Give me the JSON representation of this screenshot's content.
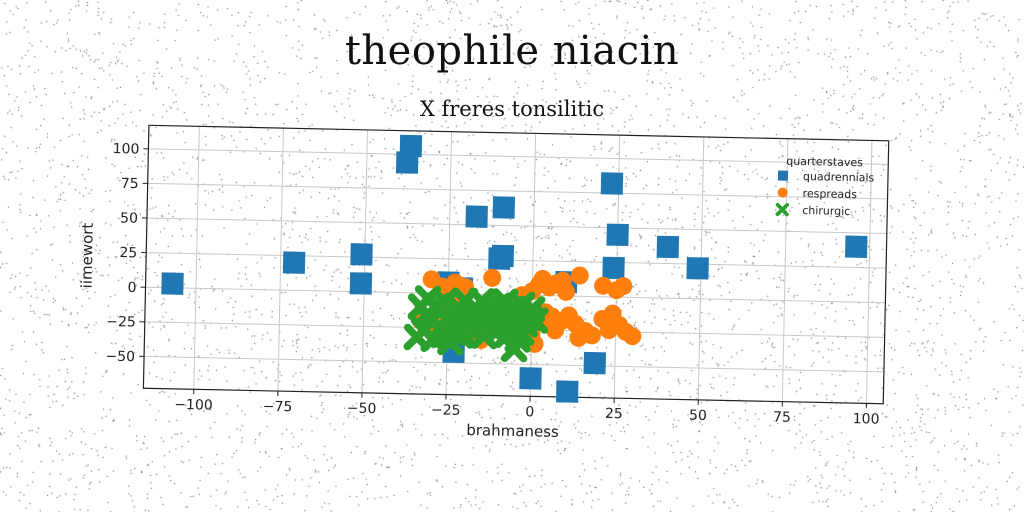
{
  "title": "theophile niacin",
  "subtitle": "X freres tonsilitic",
  "chart_data": {
    "type": "scatter",
    "xlabel": "brahmaness",
    "ylabel": "iimewort",
    "xlim": [
      -115,
      105
    ],
    "ylim": [
      -73,
      117
    ],
    "xticks": [
      -100,
      -75,
      -50,
      -25,
      0,
      25,
      50,
      75,
      100
    ],
    "yticks": [
      -50,
      -25,
      0,
      25,
      50,
      75,
      100
    ],
    "xtick_labels": [
      "−100",
      "−75",
      "−50",
      "−25",
      "0",
      "25",
      "50",
      "75",
      "100"
    ],
    "ytick_labels": [
      "−50",
      "−25",
      "0",
      "25",
      "50",
      "75",
      "100"
    ],
    "grid": true,
    "legend": {
      "title": "quarterstaves",
      "placement": "top-right"
    },
    "series": [
      {
        "name": "quadrennials",
        "marker": "square",
        "color": "#1f77b4",
        "x": [
          -37,
          -38,
          23,
          -17,
          -9,
          -51,
          -71,
          -107,
          -51,
          25,
          24,
          40,
          49,
          96,
          -10,
          -9,
          10,
          -25,
          -21,
          -30,
          19,
          0,
          11,
          -23
        ],
        "y": [
          106,
          94,
          82,
          56,
          63,
          27,
          20,
          3,
          6,
          45,
          21,
          37,
          22,
          40,
          26,
          28,
          10,
          8,
          4,
          -22,
          -48,
          -60,
          -69,
          -42
        ],
        "points": [
          [
            -37,
            106
          ],
          [
            -38,
            94
          ],
          [
            23,
            82
          ],
          [
            -17,
            56
          ],
          [
            -9,
            63
          ],
          [
            -51,
            27
          ],
          [
            -71,
            20
          ],
          [
            -107,
            3
          ],
          [
            -51,
            6
          ],
          [
            25,
            45
          ],
          [
            24,
            21
          ],
          [
            40,
            37
          ],
          [
            49,
            22
          ],
          [
            96,
            40
          ],
          [
            -10,
            26
          ],
          [
            -9,
            28
          ],
          [
            10,
            10
          ],
          [
            -25,
            8
          ],
          [
            -21,
            4
          ],
          [
            -30,
            -22
          ],
          [
            19,
            -48
          ],
          [
            0,
            -60
          ],
          [
            11,
            -69
          ],
          [
            -23,
            -42
          ]
        ]
      },
      {
        "name": "respreads",
        "marker": "circle",
        "color": "#ff7f0e",
        "points": [
          [
            -30,
            10
          ],
          [
            -27,
            5
          ],
          [
            -24,
            2
          ],
          [
            -23,
            8
          ],
          [
            -20,
            5
          ],
          [
            -25,
            -5
          ],
          [
            -22,
            -10
          ],
          [
            -21,
            -15
          ],
          [
            -18,
            -20
          ],
          [
            -17,
            -25
          ],
          [
            -16,
            -28
          ],
          [
            -15,
            -33
          ],
          [
            -13,
            -16
          ],
          [
            -12,
            -12
          ],
          [
            -8,
            -10
          ],
          [
            -12,
            12
          ],
          [
            -4,
            -20
          ],
          [
            -2,
            -15
          ],
          [
            -1,
            -25
          ],
          [
            0,
            -28
          ],
          [
            1,
            -35
          ],
          [
            3,
            -18
          ],
          [
            4,
            -12
          ],
          [
            6,
            -22
          ],
          [
            7,
            -25
          ],
          [
            9,
            -18
          ],
          [
            11,
            -14
          ],
          [
            13,
            -20
          ],
          [
            14,
            -30
          ],
          [
            16,
            -25
          ],
          [
            18,
            -28
          ],
          [
            21,
            -16
          ],
          [
            24,
            -12
          ],
          [
            26,
            -20
          ],
          [
            28,
            -25
          ],
          [
            30,
            -28
          ],
          [
            23,
            -24
          ],
          [
            2,
            8
          ],
          [
            5,
            6
          ],
          [
            7,
            9
          ],
          [
            9,
            11
          ],
          [
            3,
            12
          ],
          [
            14,
            15
          ],
          [
            21,
            8
          ],
          [
            25,
            5
          ],
          [
            27,
            8
          ],
          [
            10,
            3
          ],
          [
            0,
            3
          ],
          [
            -3,
            0
          ],
          [
            -6,
            -7
          ],
          [
            -26,
            -17
          ],
          [
            -28,
            -28
          ],
          [
            -33,
            -20
          ],
          [
            -10,
            -20
          ],
          [
            6,
            -15
          ]
        ]
      },
      {
        "name": "chirurgic",
        "marker": "x",
        "color": "#2ca02c",
        "points": [
          [
            -33,
            -10
          ],
          [
            -31,
            -15
          ],
          [
            -30,
            -20
          ],
          [
            -28,
            -12
          ],
          [
            -27,
            -25
          ],
          [
            -26,
            -30
          ],
          [
            -25,
            -18
          ],
          [
            -24,
            -22
          ],
          [
            -23,
            -28
          ],
          [
            -22,
            -10
          ],
          [
            -21,
            -26
          ],
          [
            -20,
            -16
          ],
          [
            -19,
            -23
          ],
          [
            -34,
            -32
          ],
          [
            -32,
            -27
          ],
          [
            -29,
            -33
          ],
          [
            -24,
            -35
          ],
          [
            -21,
            -30
          ],
          [
            -18,
            -19
          ],
          [
            -17,
            -15
          ],
          [
            -16,
            -12
          ],
          [
            -14,
            -20
          ],
          [
            -13,
            -10
          ],
          [
            -12,
            -16
          ],
          [
            -11,
            -23
          ],
          [
            -10,
            -8
          ],
          [
            -9,
            -15
          ],
          [
            -8,
            -20
          ],
          [
            -7,
            -11
          ],
          [
            -6,
            -18
          ],
          [
            -5,
            -25
          ],
          [
            -4,
            -13
          ],
          [
            -3,
            -7
          ],
          [
            -2,
            -21
          ],
          [
            -1,
            -16
          ],
          [
            0,
            -10
          ],
          [
            1,
            -18
          ],
          [
            -3,
            -27
          ],
          [
            -4,
            -32
          ],
          [
            -7,
            -29
          ],
          [
            -10,
            -26
          ],
          [
            -12,
            -24
          ],
          [
            -14,
            -30
          ],
          [
            -5,
            -39
          ],
          [
            -26,
            -6
          ],
          [
            -28,
            -9
          ],
          [
            -31,
            -4
          ],
          [
            -20,
            -5
          ],
          [
            -15,
            -5
          ],
          [
            -8,
            -5
          ]
        ]
      }
    ]
  }
}
